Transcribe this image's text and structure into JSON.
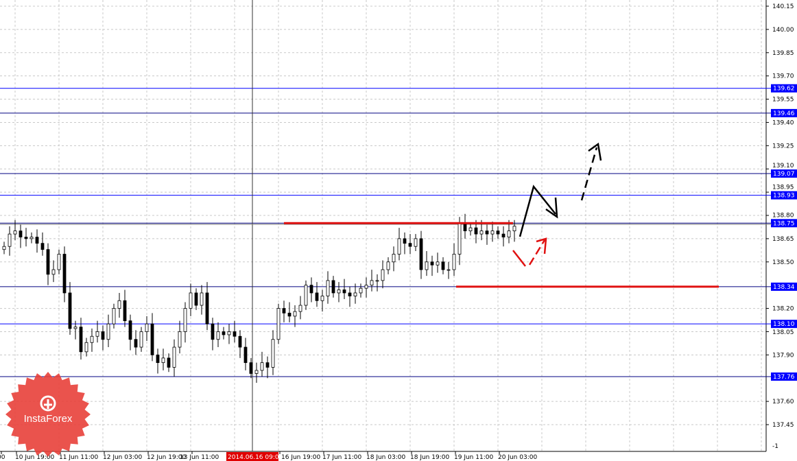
{
  "chart_data": {
    "type": "candlestick",
    "title": "",
    "y_ticks": [
      "140.15",
      "140.00",
      "139.85",
      "139.70",
      "139.55",
      "139.40",
      "139.25",
      "139.10",
      "138.95",
      "138.80",
      "138.65",
      "138.50",
      "138.20",
      "138.05",
      "137.90",
      "137.60",
      "137.45"
    ],
    "y_bottom_label": "-1",
    "ylim": [
      137.45,
      140.15
    ],
    "x_ticks": [
      "00",
      "10 Jun 19:00",
      "11 Jun 11:00",
      "12 Jun 03:00",
      "12 Jun 19:00",
      "13 Jun 11:00",
      "16 Jun 19:00",
      "17 Jun 11:00",
      "18 Jun 03:00",
      "18 Jun 19:00",
      "19 Jun 11:00",
      "20 Jun 03:00"
    ],
    "crosshair_time": "2014.06.16 09:00",
    "closes": [
      138.6,
      138.68,
      138.7,
      138.66,
      138.65,
      138.66,
      138.62,
      138.58,
      138.42,
      138.45,
      138.55,
      138.3,
      138.07,
      138.08,
      137.92,
      137.98,
      138.02,
      138.05,
      138.0,
      138.1,
      138.2,
      138.25,
      138.12,
      138.0,
      137.95,
      138.05,
      138.1,
      137.9,
      137.85,
      137.88,
      137.82,
      137.95,
      138.05,
      138.2,
      138.3,
      138.22,
      138.3,
      138.1,
      138.0,
      138.05,
      138.03,
      138.05,
      138.02,
      137.95,
      137.85,
      137.78,
      137.8,
      137.85,
      137.82,
      138.0,
      138.2,
      138.17,
      138.15,
      138.18,
      138.22,
      138.35,
      138.3,
      138.25,
      138.28,
      138.38,
      138.3,
      138.32,
      138.3,
      138.28,
      138.3,
      138.33,
      138.35,
      138.38,
      138.38,
      138.45,
      138.5,
      138.55,
      138.65,
      138.62,
      138.6,
      138.65,
      138.45,
      138.5,
      138.48,
      138.5,
      138.45,
      138.45,
      138.55,
      138.75,
      138.7,
      138.72,
      138.68,
      138.7,
      138.68,
      138.7,
      138.68,
      138.66,
      138.7,
      138.73
    ],
    "levels": [
      {
        "price": "139.62",
        "color": "#0000ff"
      },
      {
        "price": "139.46",
        "color": "#000080"
      },
      {
        "price": "139.07",
        "color": "#000080"
      },
      {
        "price": "138.93",
        "color": "#0000ff"
      },
      {
        "price": "138.75",
        "color": "#000080"
      },
      {
        "price": "138.34",
        "color": "#000080"
      },
      {
        "price": "138.10",
        "color": "#0000ff"
      },
      {
        "price": "137.76",
        "color": "#000080"
      }
    ],
    "red_lines": [
      138.75,
      138.34
    ],
    "colors": {
      "candle": "#000000",
      "label_bg": "#0000ff",
      "red": "#e01010",
      "crosshair_bg": "#e00000"
    }
  },
  "logo": {
    "text": "InstaForex"
  }
}
